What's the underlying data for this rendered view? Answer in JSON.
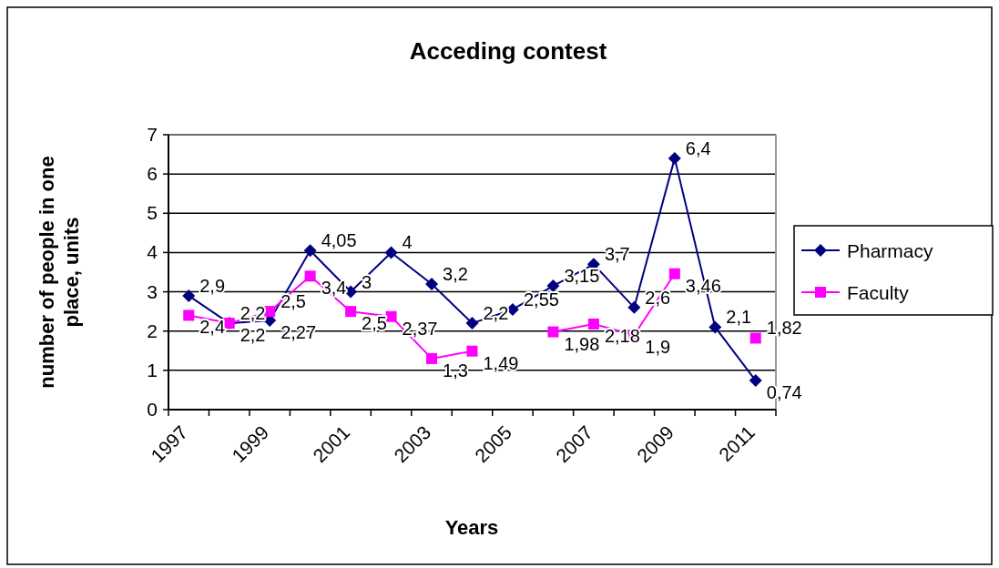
{
  "chart_data": {
    "type": "line",
    "title": "Acceding contest",
    "xlabel": "Years",
    "ylabel": "number of people in one place, units",
    "categories": [
      "1997",
      null,
      "1999",
      null,
      "2001",
      null,
      "2003",
      null,
      "2005",
      null,
      "2007",
      null,
      "2009",
      null,
      "2011"
    ],
    "series": [
      {
        "name": "Pharmacy",
        "color": "#000080",
        "marker": "diamond",
        "values": [
          2.9,
          2.2,
          2.27,
          4.05,
          3,
          4,
          3.2,
          2.2,
          2.55,
          3.15,
          3.7,
          2.6,
          6.4,
          2.1,
          0.74
        ],
        "value_labels": [
          "2,9",
          "2,2",
          "2,27",
          "4,05",
          "3",
          "4",
          "3,2",
          "2,2",
          "2,55",
          "3,15",
          "3,7",
          "2,6",
          "6,4",
          "2,1",
          "0,74"
        ]
      },
      {
        "name": "Faculty",
        "color": "#ff00ff",
        "marker": "square",
        "values": [
          2.4,
          2.2,
          2.5,
          3.4,
          2.5,
          2.37,
          1.3,
          1.49,
          null,
          1.98,
          2.18,
          1.9,
          3.46,
          null,
          1.82
        ],
        "value_labels": [
          "2,4",
          "2,2",
          "2,5",
          "3,4",
          "2,5",
          "2,37",
          "1,3",
          "1,49",
          null,
          "1,98",
          "2,18",
          "1,9",
          "3,46",
          null,
          "1,82"
        ]
      }
    ],
    "ylim": [
      0,
      7
    ],
    "yticks": [
      0,
      1,
      2,
      3,
      4,
      5,
      6,
      7
    ],
    "grid": "y",
    "legend": "right"
  }
}
